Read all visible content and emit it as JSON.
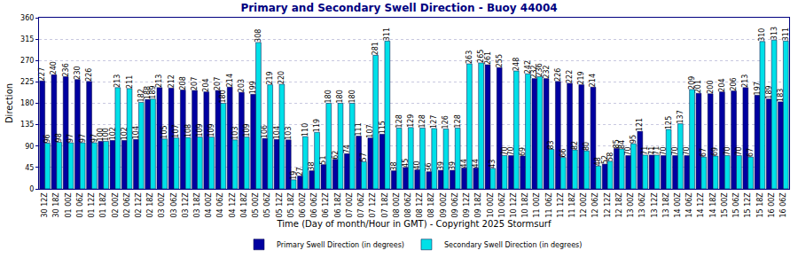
{
  "chart_data": {
    "type": "bar",
    "title": "Primary and Secondary Swell Direction - Buoy 44004",
    "x_label": "Time (Day of month/Hour in GMT) - Copyright 2025 Stormsurf",
    "y_label": "Direction",
    "categories": [
      "30 12Z",
      "30 18Z",
      "01 00Z",
      "01 06Z",
      "01 12Z",
      "01 18Z",
      "02 00Z",
      "02 06Z",
      "02 12Z",
      "02 18Z",
      "03 00Z",
      "03 06Z",
      "03 12Z",
      "03 18Z",
      "04 00Z",
      "04 06Z",
      "04 12Z",
      "04 18Z",
      "05 00Z",
      "05 06Z",
      "05 12Z",
      "05 18Z",
      "06 00Z",
      "06 06Z",
      "06 12Z",
      "06 18Z",
      "07 00Z",
      "07 06Z",
      "07 12Z",
      "07 18Z",
      "08 00Z",
      "08 06Z",
      "08 12Z",
      "08 18Z",
      "09 00Z",
      "09 06Z",
      "09 12Z",
      "09 18Z",
      "10 00Z",
      "10 06Z",
      "10 12Z",
      "10 18Z",
      "11 00Z",
      "11 06Z",
      "11 12Z",
      "11 18Z",
      "12 00Z",
      "12 06Z",
      "12 12Z",
      "12 18Z",
      "13 00Z",
      "13 06Z",
      "13 12Z",
      "13 18Z",
      "14 00Z",
      "14 06Z",
      "14 12Z",
      "14 18Z",
      "15 00Z",
      "15 06Z",
      "15 12Z",
      "15 18Z",
      "16 00Z",
      "16 06Z"
    ],
    "series": [
      {
        "name": "Primary Swell Direction (in degrees)",
        "color": "#0000a0",
        "values": [
          227,
          240,
          236,
          230,
          226,
          100,
          102,
          102,
          104,
          188,
          213,
          212,
          208,
          207,
          204,
          207,
          214,
          203,
          199,
          106,
          104,
          103,
          27,
          38,
          51,
          62,
          74,
          111,
          107,
          115,
          38,
          45,
          40,
          36,
          39,
          39,
          44,
          44,
          261,
          255,
          70,
          69,
          232,
          232,
          226,
          222,
          219,
          214,
          52,
          85,
          70,
          121,
          71,
          70,
          70,
          70,
          201,
          200,
          204,
          206,
          213,
          197,
          189,
          183
        ]
      },
      {
        "name": "Secondary Swell Direction (in degrees)",
        "color": "#00e0e8",
        "values": [
          96,
          98,
          97,
          97,
          97,
          100,
          213,
          211,
          182,
          189,
          105,
          107,
          108,
          109,
          109,
          180,
          103,
          109,
          308,
          219,
          220,
          19,
          110,
          119,
          180,
          180,
          180,
          57,
          281,
          311,
          128,
          129,
          128,
          127,
          126,
          128,
          263,
          265,
          43,
          70,
          248,
          242,
          236,
          83,
          66,
          82,
          80,
          48,
          58,
          84,
          95,
          71,
          71,
          125,
          137,
          209,
          67,
          69,
          70,
          70,
          67,
          310,
          313,
          311
        ]
      }
    ],
    "ylim": [
      0,
      360
    ],
    "yticks": [
      0,
      45,
      90,
      135,
      180,
      225,
      270,
      315,
      360
    ],
    "grid": true,
    "legend": "bottom",
    "data_labels": true
  }
}
